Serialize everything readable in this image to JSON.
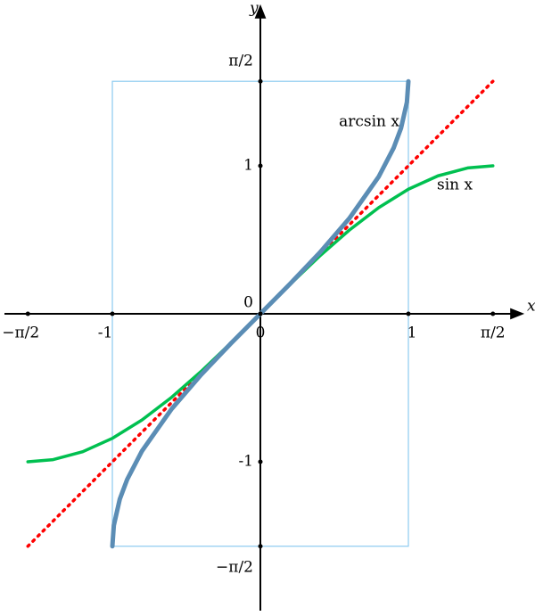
{
  "chart_data": {
    "type": "line",
    "x_label": "x",
    "y_label": "y",
    "xlim": [
      -1.729,
      1.765
    ],
    "ylim": [
      -2.006,
      2.072
    ],
    "xticks": [
      {
        "value": -1.5708,
        "label": "−π/2"
      },
      -1,
      0,
      1,
      {
        "value": 1.5708,
        "label": "π/2"
      }
    ],
    "yticks": [
      {
        "value": -1.5708,
        "label": "−π/2"
      },
      -1,
      0,
      1,
      {
        "value": 1.5708,
        "label": "π/2"
      }
    ],
    "series": [
      {
        "name": "arcsin x",
        "color": "#5b8db5",
        "x": [
          -1,
          -0.99,
          -0.95,
          -0.9,
          -0.8,
          -0.6,
          -0.4,
          -0.2,
          0,
          0.2,
          0.4,
          0.6,
          0.8,
          0.9,
          0.95,
          0.99,
          1
        ],
        "values": [
          -1.5708,
          -1.4293,
          -1.2532,
          -1.1198,
          -0.9273,
          -0.6435,
          -0.4115,
          -0.2014,
          0,
          0.2014,
          0.4115,
          0.6435,
          0.9273,
          1.1198,
          1.2532,
          1.4293,
          1.5708
        ]
      },
      {
        "name": "sin x",
        "color": "#00c050",
        "x": [
          -1.5708,
          -1.4,
          -1.2,
          -1.0,
          -0.8,
          -0.6,
          -0.4,
          -0.2,
          0,
          0.2,
          0.4,
          0.6,
          0.8,
          1.0,
          1.2,
          1.4,
          1.5708
        ],
        "values": [
          -1,
          -0.9854,
          -0.932,
          -0.8415,
          -0.7174,
          -0.5646,
          -0.3894,
          -0.1987,
          0,
          0.1987,
          0.3894,
          0.5646,
          0.7174,
          0.8415,
          0.932,
          0.9854,
          1
        ]
      },
      {
        "color": "#ff0000",
        "x": [
          -1.5708,
          1.5708
        ],
        "values": [
          -1.5708,
          1.5708
        ]
      }
    ]
  }
}
